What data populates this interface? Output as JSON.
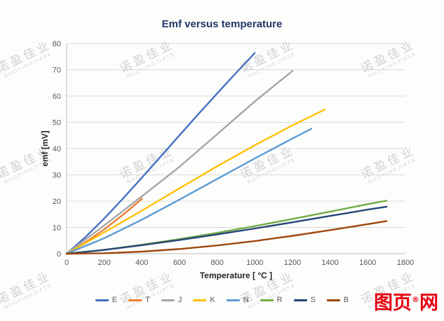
{
  "watermark": {
    "chinese": "诺盈佳业",
    "latin": "NUOYINGJIAYE"
  },
  "logo": {
    "text_before": "图页",
    "registered": "®",
    "text_after": "网",
    "color": "#e60012"
  },
  "chart_data": {
    "type": "line",
    "title": "Emf versus temperature",
    "xlabel": "Temperature [ °C ]",
    "ylabel": "emf [mV]",
    "xlim": [
      0,
      1800
    ],
    "ylim": [
      0,
      80
    ],
    "xticks": [
      0,
      200,
      400,
      600,
      800,
      1000,
      1200,
      1400,
      1600,
      1800
    ],
    "yticks": [
      0,
      10,
      20,
      30,
      40,
      50,
      60,
      70,
      80
    ],
    "grid": "horizontal-only",
    "gridline_color": "#d9d9d9",
    "axis_line_color": "#bfbfbf",
    "legend_position": "bottom",
    "series": [
      {
        "name": "E",
        "color": "#4472C4",
        "x": [
          0,
          100,
          200,
          300,
          400,
          500,
          600,
          700,
          800,
          900,
          1000
        ],
        "y": [
          0,
          6.32,
          13.42,
          21.04,
          28.95,
          37.01,
          45.09,
          53.11,
          61.02,
          68.79,
          76.37
        ]
      },
      {
        "name": "T",
        "color": "#ED7D31",
        "x": [
          0,
          100,
          200,
          300,
          400
        ],
        "y": [
          0,
          4.28,
          9.29,
          14.86,
          20.87
        ]
      },
      {
        "name": "J",
        "color": "#A5A5A5",
        "x": [
          0,
          200,
          400,
          600,
          800,
          1000,
          1200
        ],
        "y": [
          0,
          10.78,
          21.85,
          33.1,
          45.49,
          57.95,
          69.55
        ]
      },
      {
        "name": "K",
        "color": "#FFC000",
        "x": [
          0,
          200,
          400,
          600,
          800,
          1000,
          1200,
          1372
        ],
        "y": [
          0,
          8.14,
          16.4,
          24.91,
          33.28,
          41.28,
          48.84,
          54.88
        ]
      },
      {
        "name": "N",
        "color": "#5B9BD5",
        "x": [
          0,
          200,
          400,
          600,
          800,
          1000,
          1200,
          1300
        ],
        "y": [
          0,
          5.91,
          12.97,
          20.61,
          28.46,
          36.26,
          43.85,
          47.51
        ]
      },
      {
        "name": "R",
        "color": "#70AD47",
        "x": [
          0,
          200,
          400,
          600,
          800,
          1000,
          1200,
          1400,
          1600,
          1700
        ],
        "y": [
          0,
          1.47,
          3.41,
          5.58,
          7.95,
          10.51,
          13.23,
          16.04,
          18.85,
          20.2
        ]
      },
      {
        "name": "S",
        "color": "#264478",
        "x": [
          0,
          200,
          400,
          600,
          800,
          1000,
          1200,
          1400,
          1600,
          1700
        ],
        "y": [
          0,
          1.44,
          3.26,
          5.24,
          7.35,
          9.59,
          11.95,
          14.37,
          16.77,
          17.9
        ]
      },
      {
        "name": "B",
        "color": "#9E480E",
        "x": [
          0,
          200,
          400,
          600,
          800,
          1000,
          1200,
          1400,
          1600,
          1700
        ],
        "y": [
          0,
          0.18,
          0.79,
          1.79,
          3.15,
          4.83,
          6.79,
          9.0,
          11.26,
          12.43
        ]
      }
    ]
  }
}
